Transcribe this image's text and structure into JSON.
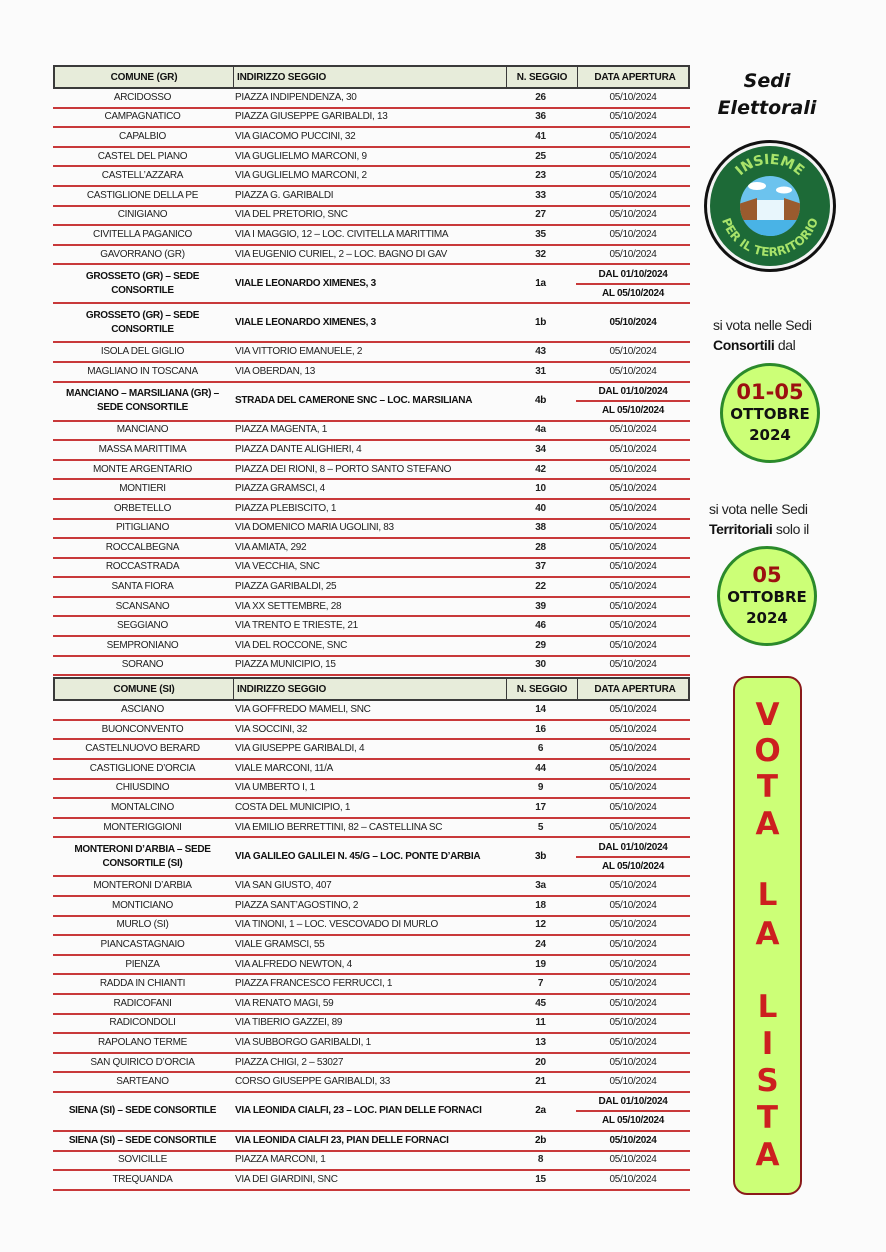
{
  "side": {
    "title_line1": "Sedi",
    "title_line2": "Elettorali",
    "logo": {
      "top_text": "INSIEME",
      "bottom_text": "PER IL TERRITORIO"
    },
    "note1": {
      "pre": "si vota nelle Sedi",
      "bold": "Consortili",
      "post": " dal"
    },
    "badge1": {
      "big": "01-05",
      "month": "OTTOBRE",
      "year": "2024"
    },
    "note2": {
      "pre": "si vota nelle Sedi",
      "bold": "Territoriali",
      "post": " solo il"
    },
    "badge2": {
      "big": "05",
      "month": "OTTOBRE",
      "year": "2024"
    },
    "vota_letters": [
      "V",
      "O",
      "T",
      "A",
      "L",
      "A",
      "L",
      "I",
      "S",
      "T",
      "A"
    ],
    "colors": {
      "accent_green": "#ccff77",
      "border_green": "#2b8a2b",
      "red": "#cc1f1f",
      "row_line": "#c8393a"
    }
  },
  "tables": [
    {
      "headers": {
        "comune": "COMUNE (GR)",
        "indirizzo": "INDIRIZZO SEGGIO",
        "seggio": "N. SEGGIO",
        "data": "DATA APERTURA"
      },
      "rows": [
        {
          "comune": "ARCIDOSSO",
          "indirizzo": "PIAZZA INDIPENDENZA, 30",
          "seggio": "26",
          "data": "05/10/2024"
        },
        {
          "comune": "CAMPAGNATICO",
          "indirizzo": "PIAZZA GIUSEPPE GARIBALDI, 13",
          "seggio": "36",
          "data": "05/10/2024"
        },
        {
          "comune": "CAPALBIO",
          "indirizzo": "VIA GIACOMO PUCCINI, 32",
          "seggio": "41",
          "data": "05/10/2024"
        },
        {
          "comune": "CASTEL DEL PIANO",
          "indirizzo": "VIA GUGLIELMO MARCONI, 9",
          "seggio": "25",
          "data": "05/10/2024"
        },
        {
          "comune": "CASTELL’AZZARA",
          "indirizzo": "VIA GUGLIELMO MARCONI, 2",
          "seggio": "23",
          "data": "05/10/2024"
        },
        {
          "comune": "CASTIGLIONE DELLA PE",
          "indirizzo": "PIAZZA G. GARIBALDI",
          "seggio": "33",
          "data": "05/10/2024"
        },
        {
          "comune": "CINIGIANO",
          "indirizzo": "VIA DEL PRETORIO, SNC",
          "seggio": "27",
          "data": "05/10/2024"
        },
        {
          "comune": "CIVITELLA PAGANICO",
          "indirizzo": "VIA I MAGGIO, 12 – LOC. CIVITELLA MARITTIMA",
          "seggio": "35",
          "data": "05/10/2024"
        },
        {
          "comune": "GAVORRANO (GR)",
          "indirizzo": "VIA EUGENIO CURIEL, 2 – LOC. BAGNO DI GAV",
          "seggio": "32",
          "data": "05/10/2024"
        },
        {
          "comune": "GROSSETO (GR) – SEDE CONSORTILE",
          "indirizzo": "VIALE LEONARDO XIMENES, 3",
          "seggio": "1a",
          "data_from": "DAL 01/10/2024",
          "data_to": "AL 05/10/2024",
          "bold": true
        },
        {
          "comune": "GROSSETO (GR) – SEDE CONSORTILE",
          "indirizzo": "VIALE LEONARDO XIMENES, 3",
          "seggio": "1b",
          "data": "05/10/2024",
          "bold": true
        },
        {
          "comune": "ISOLA DEL GIGLIO",
          "indirizzo": "VIA VITTORIO EMANUELE, 2",
          "seggio": "43",
          "data": "05/10/2024"
        },
        {
          "comune": "MAGLIANO IN TOSCANA",
          "indirizzo": "VIA OBERDAN, 13",
          "seggio": "31",
          "data": "05/10/2024"
        },
        {
          "comune": "MANCIANO – MARSILIANA (GR) – SEDE CONSORTILE",
          "indirizzo": "STRADA DEL CAMERONE SNC – LOC. MARSILIANA",
          "seggio": "4b",
          "data_from": "DAL 01/10/2024",
          "data_to": "AL 05/10/2024",
          "bold": true
        },
        {
          "comune": "MANCIANO",
          "indirizzo": "PIAZZA MAGENTA, 1",
          "seggio": "4a",
          "data": "05/10/2024"
        },
        {
          "comune": "MASSA MARITTIMA",
          "indirizzo": "PIAZZA DANTE ALIGHIERI, 4",
          "seggio": "34",
          "data": "05/10/2024"
        },
        {
          "comune": "MONTE ARGENTARIO",
          "indirizzo": "PIAZZA DEI RIONI, 8 – PORTO SANTO STEFANO",
          "seggio": "42",
          "data": "05/10/2024"
        },
        {
          "comune": "MONTIERI",
          "indirizzo": "PIAZZA GRAMSCI, 4",
          "seggio": "10",
          "data": "05/10/2024"
        },
        {
          "comune": "ORBETELLO",
          "indirizzo": "PIAZZA PLEBISCITO, 1",
          "seggio": "40",
          "data": "05/10/2024"
        },
        {
          "comune": "PITIGLIANO",
          "indirizzo": "VIA DOMENICO MARIA UGOLINI, 83",
          "seggio": "38",
          "data": "05/10/2024"
        },
        {
          "comune": "ROCCALBEGNA",
          "indirizzo": "VIA AMIATA, 292",
          "seggio": "28",
          "data": "05/10/2024"
        },
        {
          "comune": "ROCCASTRADA",
          "indirizzo": "VIA VECCHIA, SNC",
          "seggio": "37",
          "data": "05/10/2024"
        },
        {
          "comune": "SANTA FIORA",
          "indirizzo": "PIAZZA GARIBALDI, 25",
          "seggio": "22",
          "data": "05/10/2024"
        },
        {
          "comune": "SCANSANO",
          "indirizzo": "VIA XX SETTEMBRE, 28",
          "seggio": "39",
          "data": "05/10/2024"
        },
        {
          "comune": "SEGGIANO",
          "indirizzo": "VIA TRENTO E TRIESTE, 21",
          "seggio": "46",
          "data": "05/10/2024"
        },
        {
          "comune": "SEMPRONIANO",
          "indirizzo": "VIA DEL ROCCONE, SNC",
          "seggio": "29",
          "data": "05/10/2024"
        },
        {
          "comune": "SORANO",
          "indirizzo": "PIAZZA MUNICIPIO, 15",
          "seggio": "30",
          "data": "05/10/2024"
        }
      ]
    },
    {
      "headers": {
        "comune": "COMUNE (SI)",
        "indirizzo": "INDIRIZZO SEGGIO",
        "seggio": "N. SEGGIO",
        "data": "DATA APERTURA"
      },
      "rows": [
        {
          "comune": "ASCIANO",
          "indirizzo": "VIA GOFFREDO MAMELI, SNC",
          "seggio": "14",
          "data": "05/10/2024"
        },
        {
          "comune": "BUONCONVENTO",
          "indirizzo": "VIA SOCCINI, 32",
          "seggio": "16",
          "data": "05/10/2024"
        },
        {
          "comune": "CASTELNUOVO BERARD",
          "indirizzo": "VIA GIUSEPPE GARIBALDI, 4",
          "seggio": "6",
          "data": "05/10/2024"
        },
        {
          "comune": "CASTIGLIONE D’ORCIA",
          "indirizzo": "VIALE MARCONI, 11/A",
          "seggio": "44",
          "data": "05/10/2024"
        },
        {
          "comune": "CHIUSDINO",
          "indirizzo": "VIA UMBERTO I, 1",
          "seggio": "9",
          "data": "05/10/2024"
        },
        {
          "comune": "MONTALCINO",
          "indirizzo": "COSTA DEL MUNICIPIO, 1",
          "seggio": "17",
          "data": "05/10/2024"
        },
        {
          "comune": "MONTERIGGIONI",
          "indirizzo": "VIA EMILIO BERRETTINI, 82 – CASTELLINA SC",
          "seggio": "5",
          "data": "05/10/2024"
        },
        {
          "comune": "MONTERONI D’ARBIA – SEDE CONSORTILE (SI)",
          "indirizzo": "VIA GALILEO GALILEI N. 45/G – LOC. PONTE D’ARBIA",
          "seggio": "3b",
          "data_from": "DAL 01/10/2024",
          "data_to": "AL 05/10/2024",
          "bold": true
        },
        {
          "comune": "MONTERONI D’ARBIA",
          "indirizzo": "VIA SAN GIUSTO, 407",
          "seggio": "3a",
          "data": "05/10/2024"
        },
        {
          "comune": "MONTICIANO",
          "indirizzo": "PIAZZA SANT’AGOSTINO, 2",
          "seggio": "18",
          "data": "05/10/2024"
        },
        {
          "comune": "MURLO (SI)",
          "indirizzo": "VIA TINONI, 1 – LOC. VESCOVADO DI MURLO",
          "seggio": "12",
          "data": "05/10/2024"
        },
        {
          "comune": "PIANCASTAGNAIO",
          "indirizzo": "VIALE GRAMSCI, 55",
          "seggio": "24",
          "data": "05/10/2024"
        },
        {
          "comune": "PIENZA",
          "indirizzo": "VIA ALFREDO NEWTON, 4",
          "seggio": "19",
          "data": "05/10/2024"
        },
        {
          "comune": "RADDA IN CHIANTI",
          "indirizzo": "PIAZZA FRANCESCO FERRUCCI, 1",
          "seggio": "7",
          "data": "05/10/2024"
        },
        {
          "comune": "RADICOFANI",
          "indirizzo": "VIA RENATO MAGI, 59",
          "seggio": "45",
          "data": "05/10/2024"
        },
        {
          "comune": "RADICONDOLI",
          "indirizzo": "VIA TIBERIO GAZZEI, 89",
          "seggio": "11",
          "data": "05/10/2024"
        },
        {
          "comune": "RAPOLANO TERME",
          "indirizzo": "VIA SUBBORGO GARIBALDI, 1",
          "seggio": "13",
          "data": "05/10/2024"
        },
        {
          "comune": "SAN QUIRICO D’ORCIA",
          "indirizzo": "PIAZZA CHIGI, 2 – 53027",
          "seggio": "20",
          "data": "05/10/2024"
        },
        {
          "comune": "SARTEANO",
          "indirizzo": "CORSO GIUSEPPE GARIBALDI, 33",
          "seggio": "21",
          "data": "05/10/2024"
        },
        {
          "comune": "SIENA (SI) – SEDE CONSORTILE",
          "indirizzo": "VIA LEONIDA CIALFI, 23 – LOC. PIAN DELLE FORNACI",
          "seggio": "2a",
          "data_from": "DAL 01/10/2024",
          "data_to": "AL 05/10/2024",
          "bold": true
        },
        {
          "comune": "SIENA (SI) – SEDE CONSORTILE",
          "indirizzo": "VIA LEONIDA CIALFI 23, PIAN DELLE FORNACI",
          "seggio": "2b",
          "data": "05/10/2024",
          "bold": true
        },
        {
          "comune": "SOVICILLE",
          "indirizzo": "PIAZZA MARCONI, 1",
          "seggio": "8",
          "data": "05/10/2024"
        },
        {
          "comune": "TREQUANDA",
          "indirizzo": "VIA DEI GIARDINI, SNC",
          "seggio": "15",
          "data": "05/10/2024"
        }
      ]
    }
  ]
}
